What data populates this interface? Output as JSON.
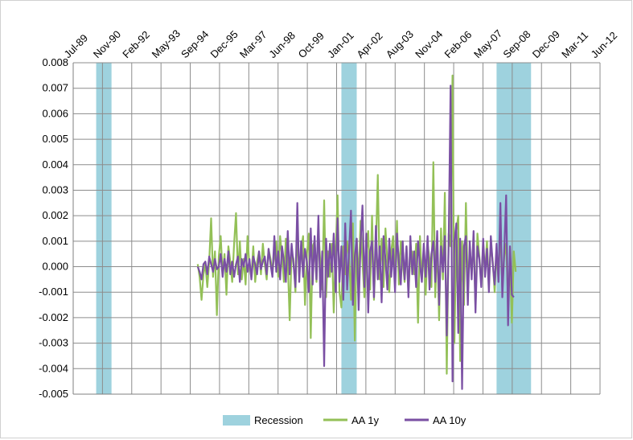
{
  "chart_data": {
    "type": "line",
    "title": "",
    "xlabel": "",
    "ylabel": "",
    "x_tick_labels": [
      "Jul-89",
      "Nov-90",
      "Feb-92",
      "May-93",
      "Sep-94",
      "Dec-95",
      "Mar-97",
      "Jun-98",
      "Oct-99",
      "Jan-01",
      "Apr-02",
      "Aug-03",
      "Nov-04",
      "Feb-06",
      "May-07",
      "Sep-08",
      "Dec-09",
      "Mar-11",
      "Jun-12"
    ],
    "x_range": [
      "1989-07",
      "2012-06"
    ],
    "y_tick_labels": [
      "0.008",
      "0.007",
      "0.006",
      "0.005",
      "0.004",
      "0.003",
      "0.002",
      "0.001",
      "0.000",
      "-0.001",
      "-0.002",
      "-0.003",
      "-0.004",
      "-0.005"
    ],
    "ylim": [
      -0.005,
      0.008
    ],
    "grid": true,
    "legend_position": "bottom",
    "recession_periods": [
      {
        "start": "1990-07",
        "end": "1991-03"
      },
      {
        "start": "2001-03",
        "end": "2001-11"
      },
      {
        "start": "2007-12",
        "end": "2009-06"
      }
    ],
    "series": [
      {
        "name": "Recession",
        "kind": "shaded-band",
        "color": "#9ed2de"
      },
      {
        "name": "AA 1y",
        "color": "#93c057",
        "start": "1994-12",
        "values": [
          0.0001,
          -0.0004,
          -0.0013,
          -0.0003,
          0.0001,
          -0.0008,
          0.0002,
          0.0019,
          -0.0004,
          0.0006,
          -0.0019,
          0.0004,
          0.0012,
          -0.0003,
          0.0005,
          -0.0011,
          0.0008,
          0.0002,
          -0.0006,
          0.0009,
          0.0021,
          -0.0003,
          0.001,
          -0.0005,
          0.0003,
          -0.0007,
          0.0012,
          0.0,
          -0.0004,
          0.0008,
          -0.0006,
          0.0002,
          0.0006,
          -0.0003,
          0.0009,
          0.0001,
          -0.0005,
          0.0007,
          0.0003,
          -0.0002,
          0.0005,
          0.001,
          -0.0004,
          0.0012,
          0.0004,
          -0.0006,
          0.0011,
          0.0002,
          -0.0021,
          0.0006,
          0.0003,
          -0.001,
          0.0014,
          -0.0004,
          0.0007,
          0.0012,
          -0.0015,
          0.0005,
          0.0013,
          -0.0028,
          0.0008,
          0.001,
          -0.0006,
          0.0014,
          0.0002,
          -0.0009,
          0.0026,
          -0.0012,
          0.0006,
          -0.0004,
          0.0009,
          -0.0018,
          0.0005,
          0.0028,
          -0.001,
          -0.0016,
          0.0008,
          -0.0003,
          0.001,
          0.0004,
          -0.0013,
          0.0017,
          -0.0029,
          0.0011,
          -0.0006,
          0.0018,
          0.0002,
          -0.0012,
          0.0005,
          0.0014,
          -0.0009,
          0.002,
          -0.0013,
          0.0007,
          0.0036,
          -0.0005,
          0.0011,
          -0.0008,
          0.0015,
          0.0002,
          -0.001,
          0.0006,
          0.0012,
          -0.0004,
          0.0018,
          -0.0007,
          0.001,
          0.0002,
          -0.0006,
          0.0008,
          -0.001,
          0.0004,
          0.0006,
          -0.0003,
          0.0009,
          -0.0022,
          0.0012,
          -0.0005,
          0.0007,
          -0.0011,
          0.0009,
          0.0003,
          -0.0008,
          0.0041,
          -0.0012,
          0.001,
          -0.0021,
          0.0015,
          -0.0005,
          0.0029,
          -0.0042,
          0.0013,
          0.0008,
          0.0075,
          -0.003,
          0.0014,
          0.002,
          -0.0037,
          0.001,
          -0.0015,
          0.0025,
          -0.0009,
          0.0006,
          -0.0002,
          0.0011,
          -0.0016,
          0.0013,
          0.0004,
          -0.0006,
          0.0008,
          -0.0002,
          0.001,
          -0.0007,
          0.0009,
          0.0002,
          -0.001,
          0.0006,
          -0.0005,
          0.0016,
          -0.0008,
          0.0004,
          0.0009,
          -0.0013,
          0.0002,
          -0.0022,
          0.0006,
          -0.0002
        ]
      },
      {
        "name": "AA 10y",
        "color": "#7a4fa3",
        "start": "1994-12",
        "values": [
          0.0,
          -0.0002,
          -0.0005,
          0.0001,
          0.0002,
          -0.0003,
          0.0004,
          0.0001,
          -0.0002,
          0.0003,
          -0.0001,
          0.0,
          0.0005,
          -0.0004,
          0.0003,
          -0.0002,
          0.0006,
          -0.0003,
          0.0002,
          -0.0004,
          0.0001,
          0.0004,
          -0.0006,
          0.0003,
          0.0,
          0.0005,
          -0.0002,
          0.0003,
          -0.0005,
          0.0004,
          0.0001,
          -0.0003,
          0.0006,
          -0.0001,
          0.0002,
          0.0004,
          -0.0003,
          0.0007,
          0.0001,
          -0.0004,
          0.0012,
          -0.0002,
          0.0006,
          -0.0005,
          0.0008,
          0.0002,
          -0.0006,
          0.0014,
          -0.0003,
          0.0009,
          0.0001,
          -0.0008,
          0.0025,
          -0.0006,
          0.001,
          -0.0004,
          0.0007,
          0.0002,
          -0.001,
          0.0015,
          -0.0007,
          0.0012,
          -0.0005,
          0.002,
          -0.0012,
          0.0006,
          -0.0039,
          0.0011,
          -0.0004,
          0.0009,
          -0.0002,
          0.0013,
          -0.001,
          0.0019,
          -0.0006,
          0.0008,
          -0.0013,
          0.0017,
          -0.0009,
          0.0006,
          0.0022,
          -0.0015,
          0.0004,
          0.0011,
          -0.0017,
          0.0009,
          0.0024,
          -0.0008,
          0.0013,
          -0.0018,
          0.0006,
          0.001,
          -0.0012,
          0.0016,
          -0.0005,
          0.0008,
          -0.0014,
          0.0012,
          0.0003,
          -0.0009,
          0.0011,
          -0.0004,
          0.0007,
          -0.001,
          0.0013,
          0.0002,
          -0.0007,
          0.001,
          -0.0005,
          0.0008,
          -0.0012,
          0.0012,
          -0.0003,
          0.0006,
          -0.0008,
          0.001,
          0.0001,
          -0.0006,
          0.0009,
          -0.0004,
          0.0012,
          -0.0009,
          0.0005,
          0.001,
          -0.0006,
          0.0014,
          -0.0015,
          0.0008,
          -0.0002,
          0.0012,
          -0.0027,
          0.0009,
          0.0071,
          -0.0045,
          0.001,
          0.0017,
          -0.0026,
          0.0011,
          -0.0048,
          0.0008,
          0.0012,
          -0.0015,
          0.001,
          -0.0005,
          0.0014,
          -0.0018,
          0.0008,
          0.0003,
          -0.0008,
          0.0011,
          -0.0004,
          0.0007,
          -0.001,
          0.0012,
          0.0001,
          -0.0007,
          0.0009,
          -0.0006,
          0.0025,
          -0.0012,
          0.0006,
          0.0028,
          -0.0023,
          0.0008,
          -0.0011,
          -0.0012
        ]
      }
    ]
  }
}
